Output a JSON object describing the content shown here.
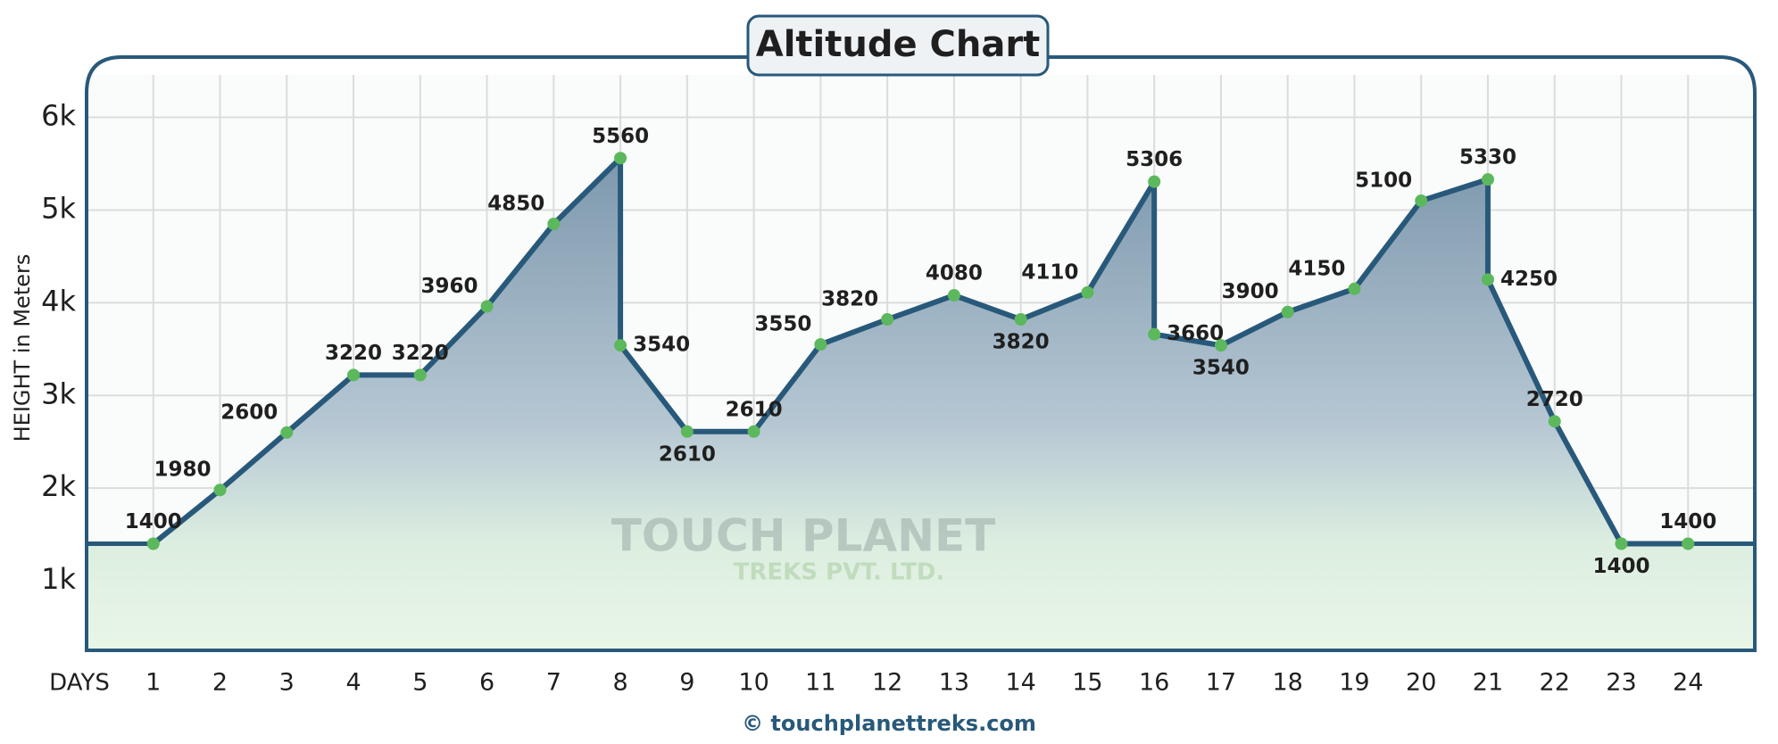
{
  "chart_data": {
    "type": "line",
    "title": "Altitude Chart",
    "y_label": "HEIGHT in Meters",
    "x_label": "DAYS",
    "footer": "© touchplanettreks.com",
    "watermark": [
      "TOUCH PLANET",
      "TREKS PVT. LTD."
    ],
    "x": [
      1,
      2,
      3,
      4,
      5,
      6,
      7,
      8,
      8,
      9,
      10,
      11,
      12,
      13,
      14,
      15,
      16,
      16,
      17,
      18,
      19,
      20,
      21,
      21,
      22,
      23,
      24
    ],
    "series": [
      {
        "name": "Altitude",
        "color": "#28597a",
        "point_color": "#5cb85c",
        "values": [
          1400,
          1980,
          2600,
          3220,
          3220,
          3960,
          4850,
          5560,
          3540,
          2610,
          2610,
          3550,
          3820,
          4080,
          3820,
          4110,
          5306,
          3660,
          3540,
          3900,
          4150,
          5100,
          5330,
          4250,
          2720,
          1400,
          1400
        ]
      }
    ],
    "xlim": [
      0,
      25
    ],
    "xticks": [
      1,
      2,
      3,
      4,
      5,
      6,
      7,
      8,
      9,
      10,
      11,
      12,
      13,
      14,
      15,
      16,
      17,
      18,
      19,
      20,
      21,
      22,
      23,
      24
    ],
    "ylim": [
      250,
      6650
    ],
    "yticks": [
      {
        "value": 1000,
        "label": "1k"
      },
      {
        "value": 2000,
        "label": "2k"
      },
      {
        "value": 3000,
        "label": "3k"
      },
      {
        "value": 4000,
        "label": "4k"
      },
      {
        "value": 5000,
        "label": "5k"
      },
      {
        "value": 6000,
        "label": "6k"
      }
    ],
    "grid": true
  }
}
